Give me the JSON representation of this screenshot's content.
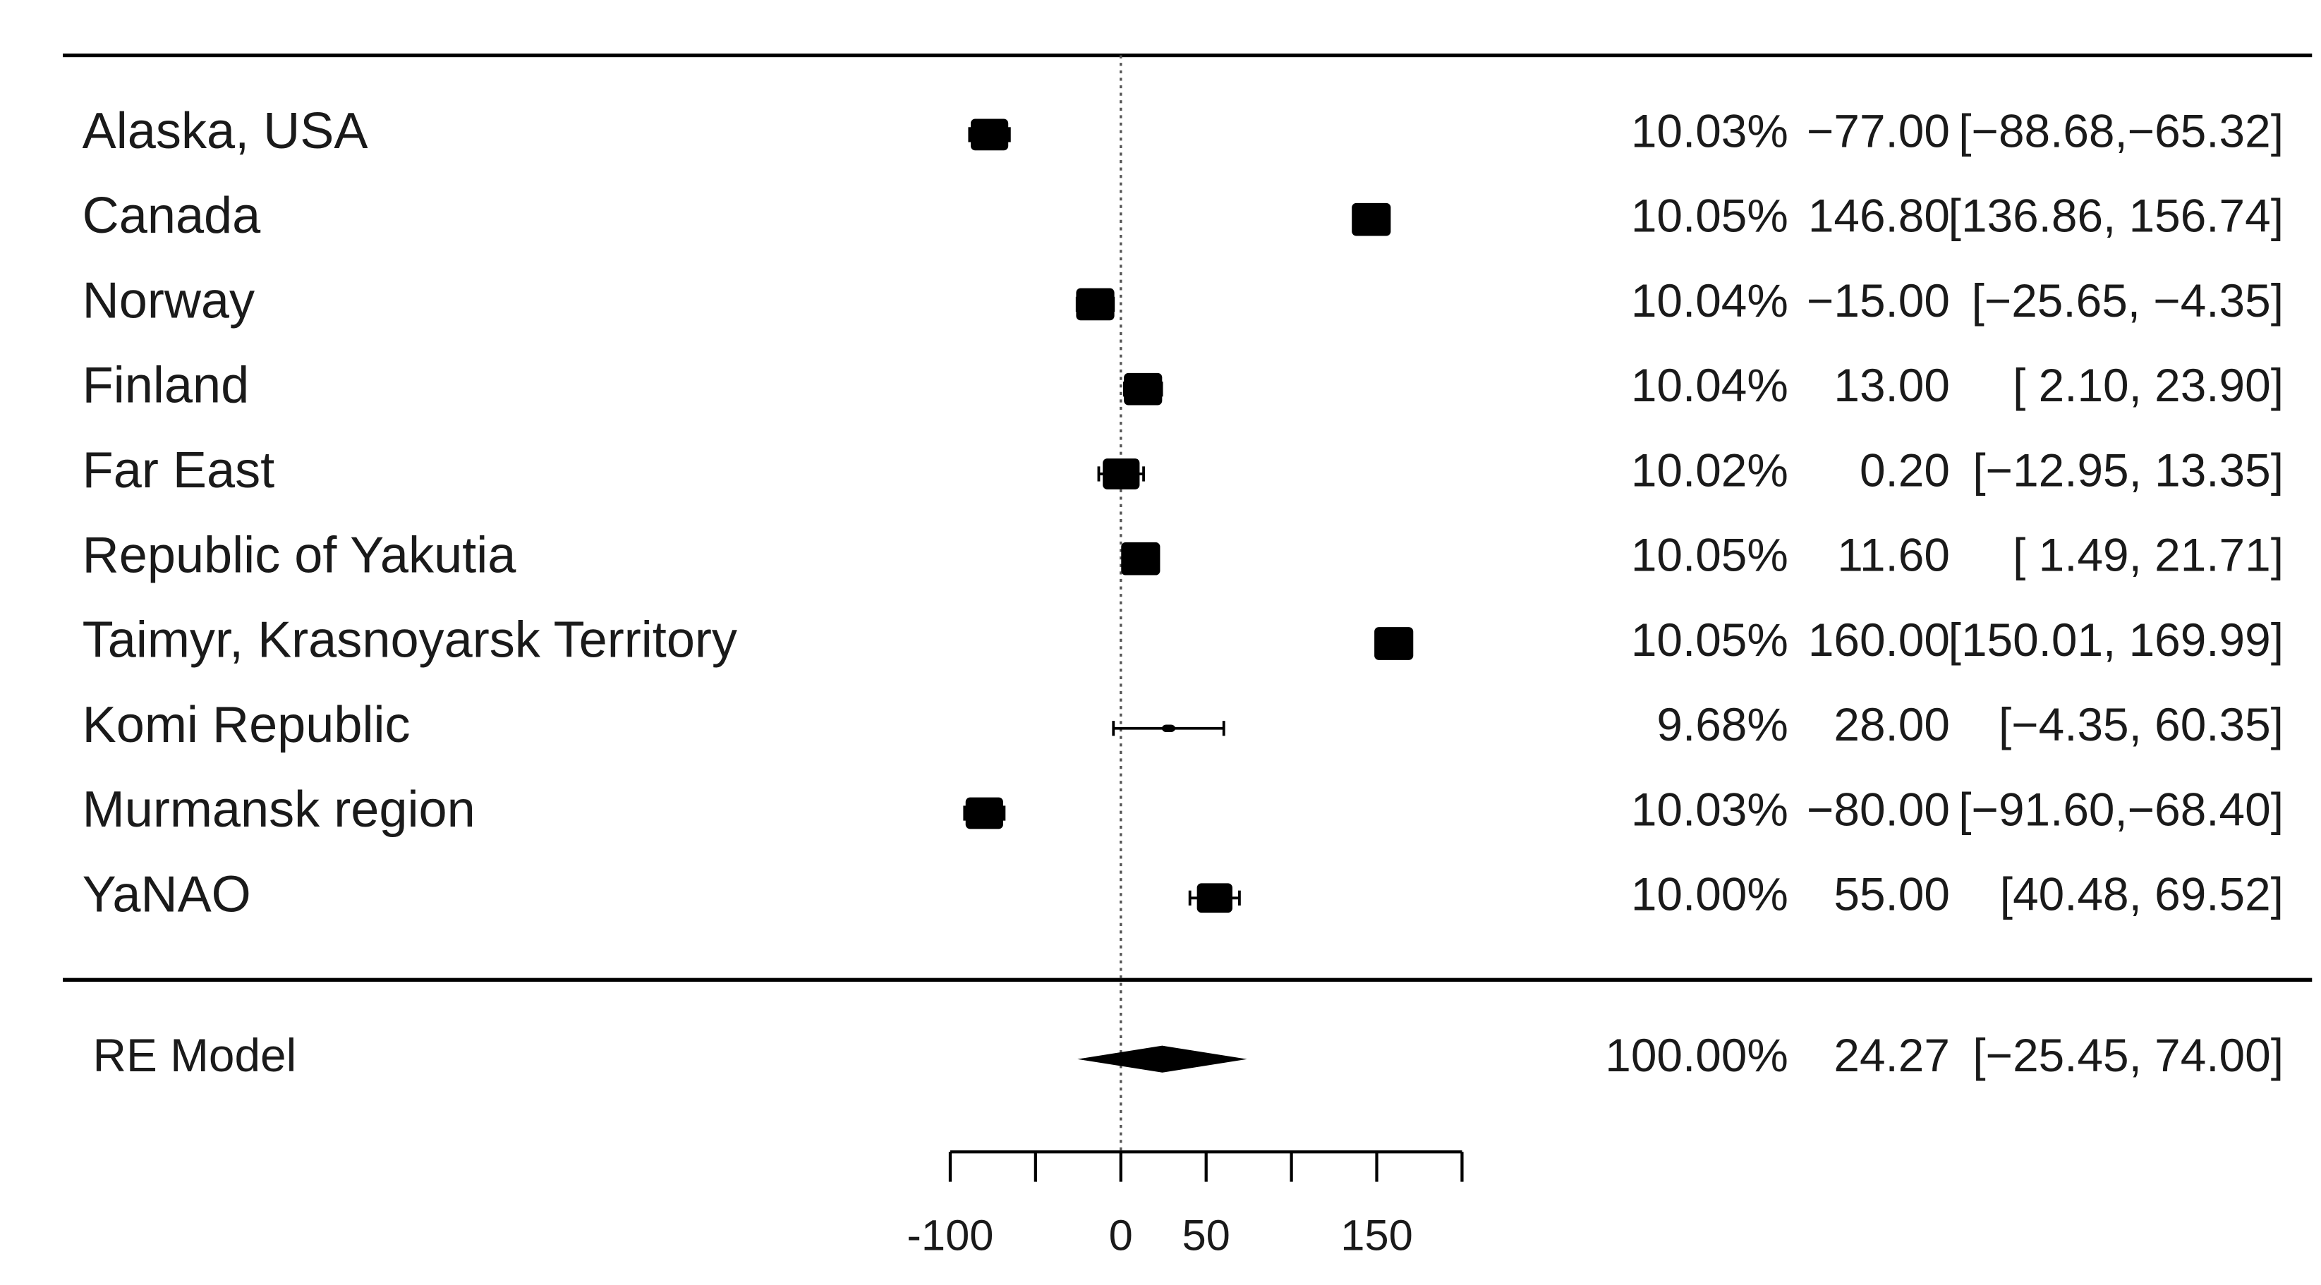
{
  "chart_data": {
    "type": "forest",
    "xlim": [
      -100,
      200
    ],
    "xticks": [
      -100,
      {
        "value": -50,
        "label": null
      },
      0,
      50,
      {
        "value": 100,
        "label": null
      },
      150,
      {
        "value": 200,
        "label": null
      }
    ],
    "reference_line": 0,
    "color": "#000000",
    "rows": [
      {
        "name": "Alaska, USA",
        "weight": 10.03,
        "weight_label": "10.03%",
        "estimate": -77.0,
        "estimate_label": "−77.00",
        "ci_low": -88.68,
        "ci_high": -65.32,
        "ci_label": "[−88.68,−65.32]"
      },
      {
        "name": "Canada",
        "weight": 10.05,
        "weight_label": "10.05%",
        "estimate": 146.8,
        "estimate_label": "146.80",
        "ci_low": 136.86,
        "ci_high": 156.74,
        "ci_label": "[136.86, 156.74]"
      },
      {
        "name": "Norway",
        "weight": 10.04,
        "weight_label": "10.04%",
        "estimate": -15.0,
        "estimate_label": "−15.00",
        "ci_low": -25.65,
        "ci_high": -4.35,
        "ci_label": "[−25.65, −4.35]"
      },
      {
        "name": "Finland",
        "weight": 10.04,
        "weight_label": "10.04%",
        "estimate": 13.0,
        "estimate_label": "13.00",
        "ci_low": 2.1,
        "ci_high": 23.9,
        "ci_label": "[ 2.10, 23.90]"
      },
      {
        "name": "Far East",
        "weight": 10.02,
        "weight_label": "10.02%",
        "estimate": 0.2,
        "estimate_label": "0.20",
        "ci_low": -12.95,
        "ci_high": 13.35,
        "ci_label": "[−12.95, 13.35]"
      },
      {
        "name": "Republic of Yakutia",
        "weight": 10.05,
        "weight_label": "10.05%",
        "estimate": 11.6,
        "estimate_label": "11.60",
        "ci_low": 1.49,
        "ci_high": 21.71,
        "ci_label": "[ 1.49, 21.71]"
      },
      {
        "name": "Taimyr, Krasnoyarsk Territory",
        "weight": 10.05,
        "weight_label": "10.05%",
        "estimate": 160.0,
        "estimate_label": "160.00",
        "ci_low": 150.01,
        "ci_high": 169.99,
        "ci_label": "[150.01, 169.99]"
      },
      {
        "name": "Komi Republic",
        "weight": 9.68,
        "weight_label": "9.68%",
        "estimate": 28.0,
        "estimate_label": "28.00",
        "ci_low": -4.35,
        "ci_high": 60.35,
        "ci_label": "[−4.35, 60.35]"
      },
      {
        "name": "Murmansk region",
        "weight": 10.03,
        "weight_label": "10.03%",
        "estimate": -80.0,
        "estimate_label": "−80.00",
        "ci_low": -91.6,
        "ci_high": -68.4,
        "ci_label": "[−91.60,−68.40]"
      },
      {
        "name": "YaNAO",
        "weight": 10.0,
        "weight_label": "10.00%",
        "estimate": 55.0,
        "estimate_label": "55.00",
        "ci_low": 40.48,
        "ci_high": 69.52,
        "ci_label": "[40.48, 69.52]"
      }
    ],
    "summary": {
      "name": "RE Model",
      "weight": 100.0,
      "weight_label": "100.00%",
      "estimate": 24.27,
      "estimate_label": "24.27",
      "ci_low": -25.45,
      "ci_high": 74.0,
      "ci_label": "[−25.45, 74.00]"
    }
  }
}
